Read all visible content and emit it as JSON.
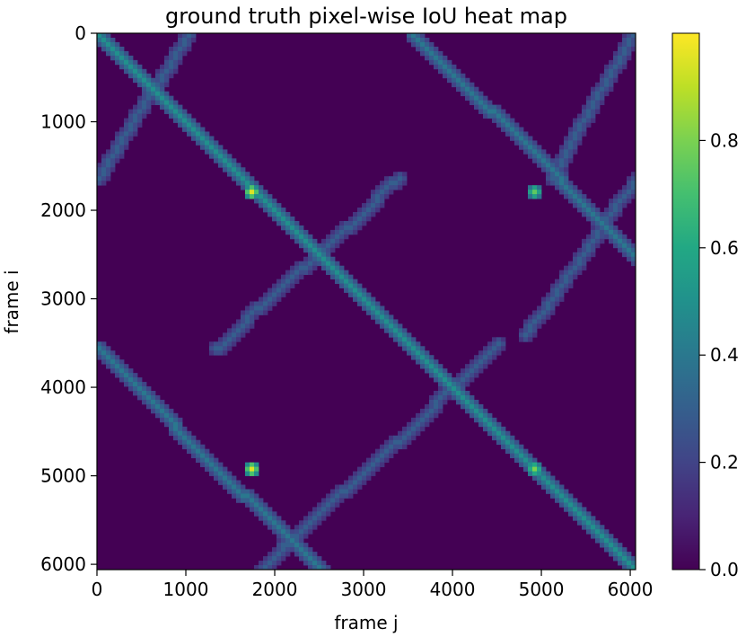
{
  "chart_data": {
    "type": "heatmap",
    "title": "ground truth pixel-wise IoU heat map",
    "xlabel": "frame j",
    "ylabel": "frame i",
    "xlim": [
      0,
      6060
    ],
    "ylim": [
      6060,
      0
    ],
    "xticks": [
      0,
      1000,
      2000,
      3000,
      4000,
      5000,
      6000
    ],
    "yticks": [
      0,
      1000,
      2000,
      3000,
      4000,
      5000,
      6000
    ],
    "colorbar": {
      "colormap": "viridis",
      "min": 0.0,
      "max": 1.0,
      "ticks": [
        0.0,
        0.2,
        0.4,
        0.6,
        0.8
      ],
      "tick_labels": [
        "0.0",
        "0.2",
        "0.4",
        "0.6",
        "0.8"
      ]
    },
    "background_value": 0.02,
    "structure": {
      "loop_period_frames": 3530,
      "segments": [
        {
          "kind": "main-diagonal",
          "i_start": 0,
          "j_start": 0,
          "i_end": 6060,
          "j_end": 6060,
          "value": 0.5
        },
        {
          "kind": "repeat-diagonal",
          "i_start": 0,
          "j_start": 3560,
          "i_end": 2500,
          "j_end": 6060,
          "value": 0.4
        },
        {
          "kind": "repeat-diagonal",
          "i_start": 3560,
          "j_start": 0,
          "i_end": 6060,
          "j_end": 2500,
          "value": 0.4
        },
        {
          "kind": "anti-diagonal",
          "i_start": 0,
          "j_start": 1000,
          "i_end": 1600,
          "j_end": 0,
          "value": 0.3
        },
        {
          "kind": "anti-diagonal",
          "i_start": 1600,
          "j_start": 3400,
          "i_end": 3560,
          "j_end": 1300,
          "value": 0.3
        },
        {
          "kind": "anti-diagonal",
          "i_start": 3500,
          "j_start": 4500,
          "i_end": 6060,
          "j_end": 1800,
          "value": 0.3
        },
        {
          "kind": "anti-diagonal",
          "i_start": 0,
          "j_start": 6000,
          "i_end": 1600,
          "j_end": 5100,
          "value": 0.3
        },
        {
          "kind": "anti-diagonal",
          "i_start": 1600,
          "j_start": 6060,
          "i_end": 3400,
          "j_end": 4800,
          "value": 0.3
        }
      ],
      "hotspots": [
        {
          "i": 1750,
          "j": 1730,
          "value": 0.95
        },
        {
          "i": 4880,
          "j": 1730,
          "value": 0.95
        },
        {
          "i": 1760,
          "j": 4880,
          "value": 0.75
        },
        {
          "i": 4900,
          "j": 4890,
          "value": 0.8
        }
      ]
    }
  }
}
